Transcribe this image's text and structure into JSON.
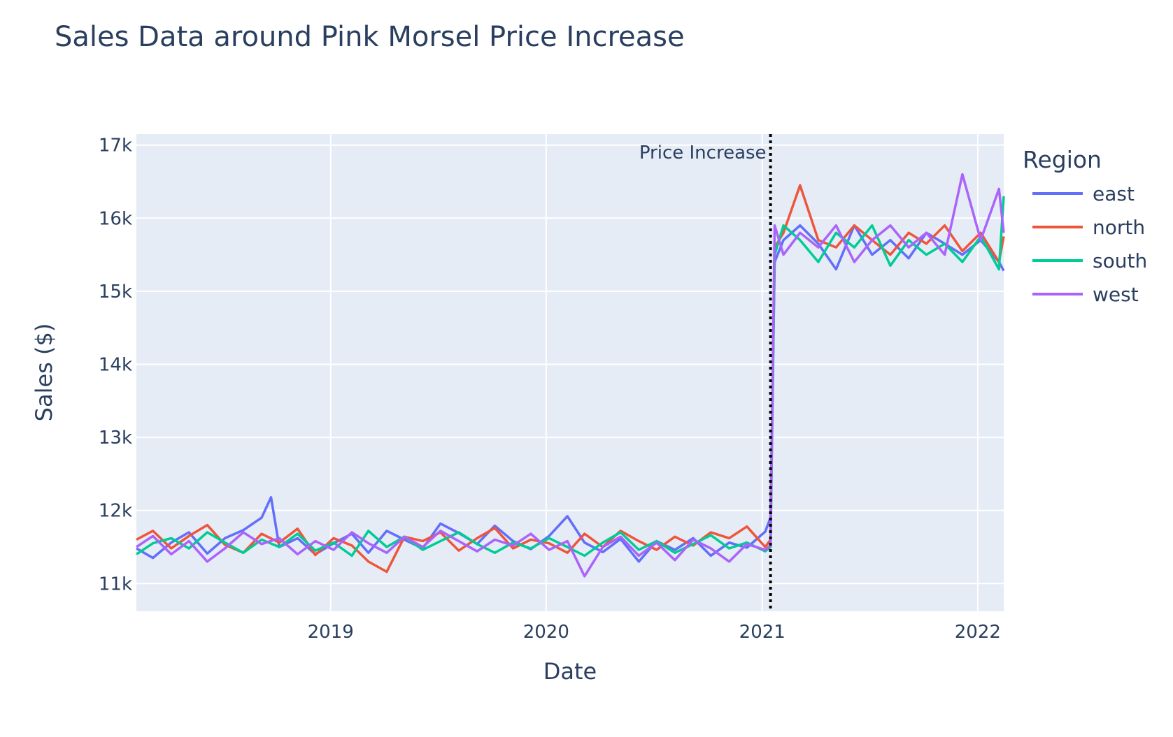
{
  "chart_data": {
    "type": "line",
    "title": "Sales Data around Pink Morsel Price Increase",
    "xlabel": "Date",
    "ylabel": "Sales ($)",
    "x_range": [
      "2018-02-06",
      "2022-02-14"
    ],
    "y_range": [
      10620,
      17150
    ],
    "x_ticks": [
      {
        "value": "2019-01-01",
        "label": "2019"
      },
      {
        "value": "2020-01-01",
        "label": "2020"
      },
      {
        "value": "2021-01-01",
        "label": "2021"
      },
      {
        "value": "2022-01-01",
        "label": "2022"
      }
    ],
    "y_ticks": [
      {
        "value": 11000,
        "label": "11k"
      },
      {
        "value": 12000,
        "label": "12k"
      },
      {
        "value": 13000,
        "label": "13k"
      },
      {
        "value": 14000,
        "label": "14k"
      },
      {
        "value": 15000,
        "label": "15k"
      },
      {
        "value": 16000,
        "label": "16k"
      },
      {
        "value": 17000,
        "label": "17k"
      }
    ],
    "grid": true,
    "plot_background": "#e5ecf6",
    "legend": {
      "title": "Region",
      "placement": "right"
    },
    "annotation": {
      "date": "2021-01-15",
      "text": "Price Increase",
      "style": "dotted-vertical-line",
      "color": "#000000"
    },
    "series": [
      {
        "name": "east",
        "color": "#636efa",
        "x": [
          "2018-02-06",
          "2018-03-06",
          "2018-04-06",
          "2018-05-06",
          "2018-06-06",
          "2018-07-06",
          "2018-08-06",
          "2018-09-06",
          "2018-09-22",
          "2018-10-06",
          "2018-11-06",
          "2018-12-06",
          "2019-01-06",
          "2019-02-06",
          "2019-03-06",
          "2019-04-06",
          "2019-05-06",
          "2019-06-06",
          "2019-07-06",
          "2019-08-06",
          "2019-09-06",
          "2019-10-06",
          "2019-11-06",
          "2019-12-06",
          "2020-01-06",
          "2020-02-06",
          "2020-03-06",
          "2020-04-06",
          "2020-05-06",
          "2020-06-06",
          "2020-07-06",
          "2020-08-06",
          "2020-09-06",
          "2020-10-06",
          "2020-11-06",
          "2020-12-06",
          "2021-01-06",
          "2021-01-15",
          "2021-01-22",
          "2021-02-06",
          "2021-03-06",
          "2021-04-06",
          "2021-05-06",
          "2021-06-06",
          "2021-07-06",
          "2021-08-06",
          "2021-09-06",
          "2021-10-06",
          "2021-11-06",
          "2021-12-06",
          "2022-01-06",
          "2022-02-06",
          "2022-02-14"
        ],
        "values": [
          11480,
          11350,
          11560,
          11700,
          11410,
          11620,
          11730,
          11900,
          12180,
          11500,
          11620,
          11400,
          11550,
          11680,
          11420,
          11720,
          11600,
          11480,
          11820,
          11690,
          11540,
          11790,
          11580,
          11470,
          11650,
          11920,
          11560,
          11430,
          11610,
          11300,
          11580,
          11460,
          11620,
          11380,
          11560,
          11490,
          11710,
          11900,
          15400,
          15700,
          15900,
          15650,
          15300,
          15900,
          15500,
          15700,
          15450,
          15800,
          15650,
          15500,
          15700,
          15400,
          15280
        ]
      },
      {
        "name": "north",
        "color": "#ef553b",
        "x": [
          "2018-02-06",
          "2018-03-06",
          "2018-04-06",
          "2018-05-06",
          "2018-06-06",
          "2018-07-06",
          "2018-08-06",
          "2018-09-06",
          "2018-10-06",
          "2018-11-06",
          "2018-12-06",
          "2019-01-06",
          "2019-02-06",
          "2019-03-06",
          "2019-04-06",
          "2019-05-06",
          "2019-06-06",
          "2019-07-06",
          "2019-08-06",
          "2019-09-06",
          "2019-10-06",
          "2019-11-06",
          "2019-12-06",
          "2020-01-06",
          "2020-02-06",
          "2020-03-06",
          "2020-04-06",
          "2020-05-06",
          "2020-06-06",
          "2020-07-06",
          "2020-08-06",
          "2020-09-06",
          "2020-10-06",
          "2020-11-06",
          "2020-12-06",
          "2021-01-06",
          "2021-01-15",
          "2021-01-22",
          "2021-02-06",
          "2021-03-06",
          "2021-04-06",
          "2021-05-06",
          "2021-06-06",
          "2021-07-06",
          "2021-08-06",
          "2021-09-06",
          "2021-10-06",
          "2021-11-06",
          "2021-12-06",
          "2022-01-06",
          "2022-02-06",
          "2022-02-14"
        ],
        "values": [
          11600,
          11720,
          11480,
          11650,
          11800,
          11530,
          11420,
          11680,
          11560,
          11750,
          11390,
          11620,
          11520,
          11300,
          11160,
          11640,
          11580,
          11700,
          11450,
          11620,
          11760,
          11480,
          11600,
          11550,
          11420,
          11680,
          11500,
          11720,
          11580,
          11460,
          11640,
          11520,
          11700,
          11620,
          11780,
          11500,
          11600,
          15600,
          15800,
          16450,
          15700,
          15600,
          15900,
          15700,
          15500,
          15800,
          15650,
          15900,
          15550,
          15800,
          15400,
          15750
        ]
      },
      {
        "name": "south",
        "color": "#00cc96",
        "x": [
          "2018-02-06",
          "2018-03-06",
          "2018-04-06",
          "2018-05-06",
          "2018-06-06",
          "2018-07-06",
          "2018-08-06",
          "2018-09-06",
          "2018-10-06",
          "2018-11-06",
          "2018-12-06",
          "2019-01-06",
          "2019-02-06",
          "2019-03-06",
          "2019-04-06",
          "2019-05-06",
          "2019-06-06",
          "2019-07-06",
          "2019-08-06",
          "2019-09-06",
          "2019-10-06",
          "2019-11-06",
          "2019-12-06",
          "2020-01-06",
          "2020-02-06",
          "2020-03-06",
          "2020-04-06",
          "2020-05-06",
          "2020-06-06",
          "2020-07-06",
          "2020-08-06",
          "2020-09-06",
          "2020-10-06",
          "2020-11-06",
          "2020-12-06",
          "2021-01-06",
          "2021-01-15",
          "2021-01-22",
          "2021-02-06",
          "2021-03-06",
          "2021-04-06",
          "2021-05-06",
          "2021-06-06",
          "2021-07-06",
          "2021-08-06",
          "2021-09-06",
          "2021-10-06",
          "2021-11-06",
          "2021-12-06",
          "2022-01-06",
          "2022-02-06",
          "2022-02-14"
        ],
        "values": [
          11400,
          11550,
          11620,
          11480,
          11700,
          11560,
          11420,
          11600,
          11500,
          11680,
          11450,
          11560,
          11380,
          11720,
          11500,
          11640,
          11460,
          11580,
          11700,
          11540,
          11420,
          11560,
          11480,
          11620,
          11500,
          11380,
          11560,
          11700,
          11460,
          11580,
          11420,
          11540,
          11660,
          11480,
          11560,
          11440,
          11500,
          15500,
          15900,
          15700,
          15400,
          15800,
          15600,
          15900,
          15350,
          15700,
          15500,
          15650,
          15400,
          15750,
          15300,
          16300
        ]
      },
      {
        "name": "west",
        "color": "#ab63fa",
        "x": [
          "2018-02-06",
          "2018-03-06",
          "2018-04-06",
          "2018-05-06",
          "2018-06-06",
          "2018-07-06",
          "2018-08-06",
          "2018-09-06",
          "2018-10-06",
          "2018-11-06",
          "2018-12-06",
          "2019-01-06",
          "2019-02-06",
          "2019-03-06",
          "2019-04-06",
          "2019-05-06",
          "2019-06-06",
          "2019-07-06",
          "2019-08-06",
          "2019-09-06",
          "2019-10-06",
          "2019-11-06",
          "2019-12-06",
          "2020-01-06",
          "2020-02-06",
          "2020-03-06",
          "2020-04-06",
          "2020-05-06",
          "2020-06-06",
          "2020-07-06",
          "2020-08-06",
          "2020-09-06",
          "2020-10-06",
          "2020-11-06",
          "2020-12-06",
          "2021-01-06",
          "2021-01-15",
          "2021-01-22",
          "2021-02-06",
          "2021-03-06",
          "2021-04-06",
          "2021-05-06",
          "2021-06-06",
          "2021-07-06",
          "2021-08-06",
          "2021-09-06",
          "2021-10-06",
          "2021-11-06",
          "2021-12-06",
          "2022-01-06",
          "2022-02-06",
          "2022-02-14"
        ],
        "values": [
          11500,
          11650,
          11400,
          11580,
          11300,
          11480,
          11700,
          11540,
          11620,
          11400,
          11580,
          11460,
          11700,
          11550,
          11420,
          11640,
          11500,
          11720,
          11580,
          11440,
          11600,
          11520,
          11680,
          11460,
          11580,
          11100,
          11500,
          11640,
          11380,
          11560,
          11320,
          11600,
          11480,
          11300,
          11540,
          11460,
          11520,
          15900,
          15500,
          15800,
          15600,
          15900,
          15400,
          15700,
          15900,
          15600,
          15800,
          15500,
          16600,
          15700,
          16400,
          15800
        ]
      }
    ]
  }
}
